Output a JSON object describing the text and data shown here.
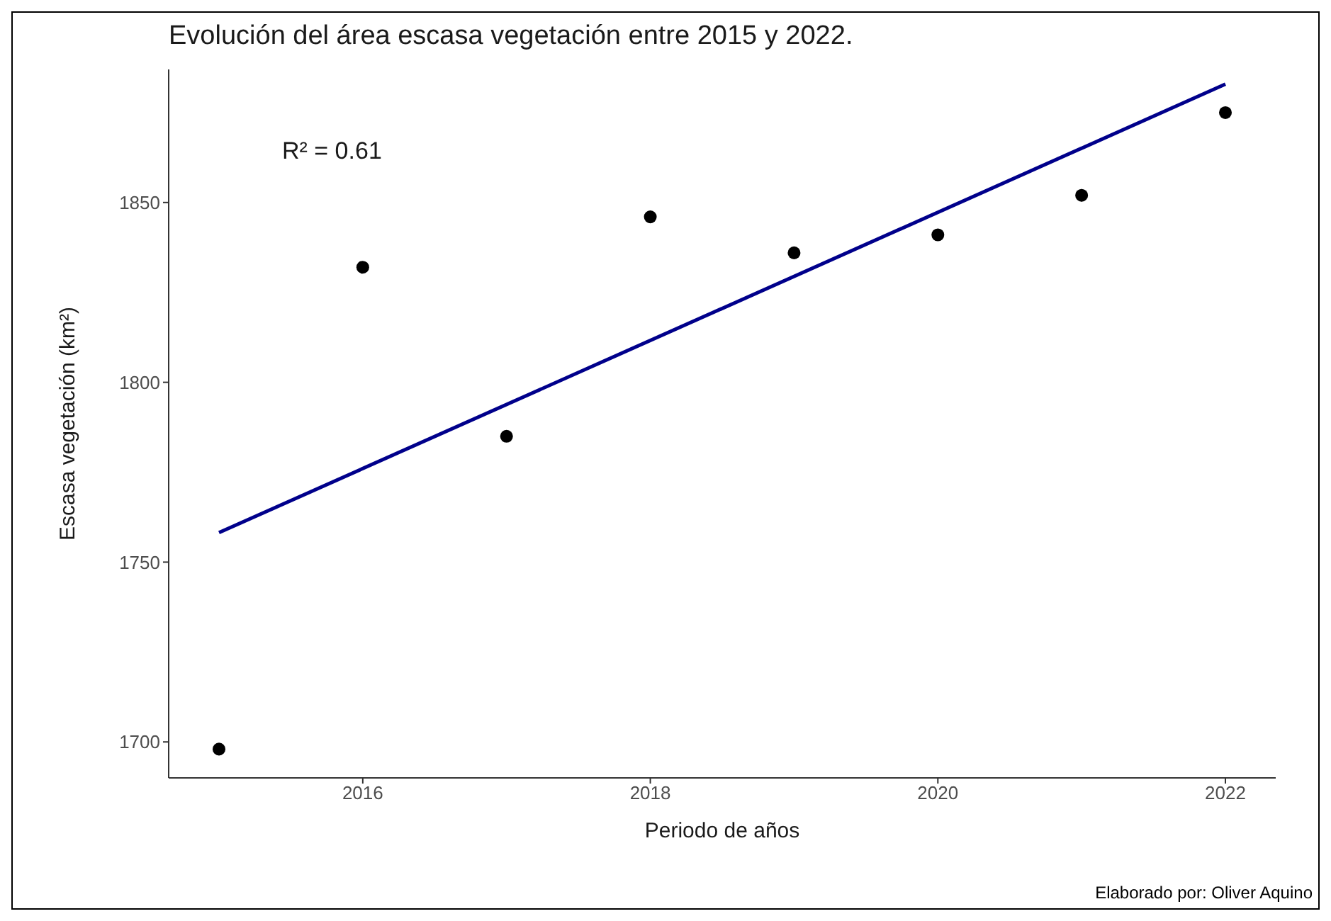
{
  "chart_data": {
    "type": "scatter",
    "title": "Evolución del área escasa vegetación entre 2015 y 2022.",
    "xlabel": "Periodo de años",
    "ylabel": "Escasa vegetación (km²)",
    "x": [
      2015,
      2016,
      2017,
      2018,
      2019,
      2020,
      2021,
      2022
    ],
    "series": [
      {
        "color": "#000000",
        "values": [
          1698,
          1832,
          1785,
          1846,
          1836,
          1841,
          1852,
          1875
        ]
      },
      {
        "type": "line",
        "marker": "none",
        "color": "#00008b",
        "x": [
          2015,
          2022
        ],
        "values": [
          1758.2,
          1882.9
        ]
      }
    ],
    "xlim": [
      2014.65,
      2022.35
    ],
    "xticks": [
      2016,
      2018,
      2020,
      2022
    ],
    "ylim": [
      1690,
      1887
    ],
    "yticks": [
      1700,
      1750,
      1800,
      1850
    ],
    "grid": false,
    "marker": "circle",
    "annotations": [
      "R² = 0.61",
      "Elaborado por: Oliver Aquino"
    ]
  }
}
